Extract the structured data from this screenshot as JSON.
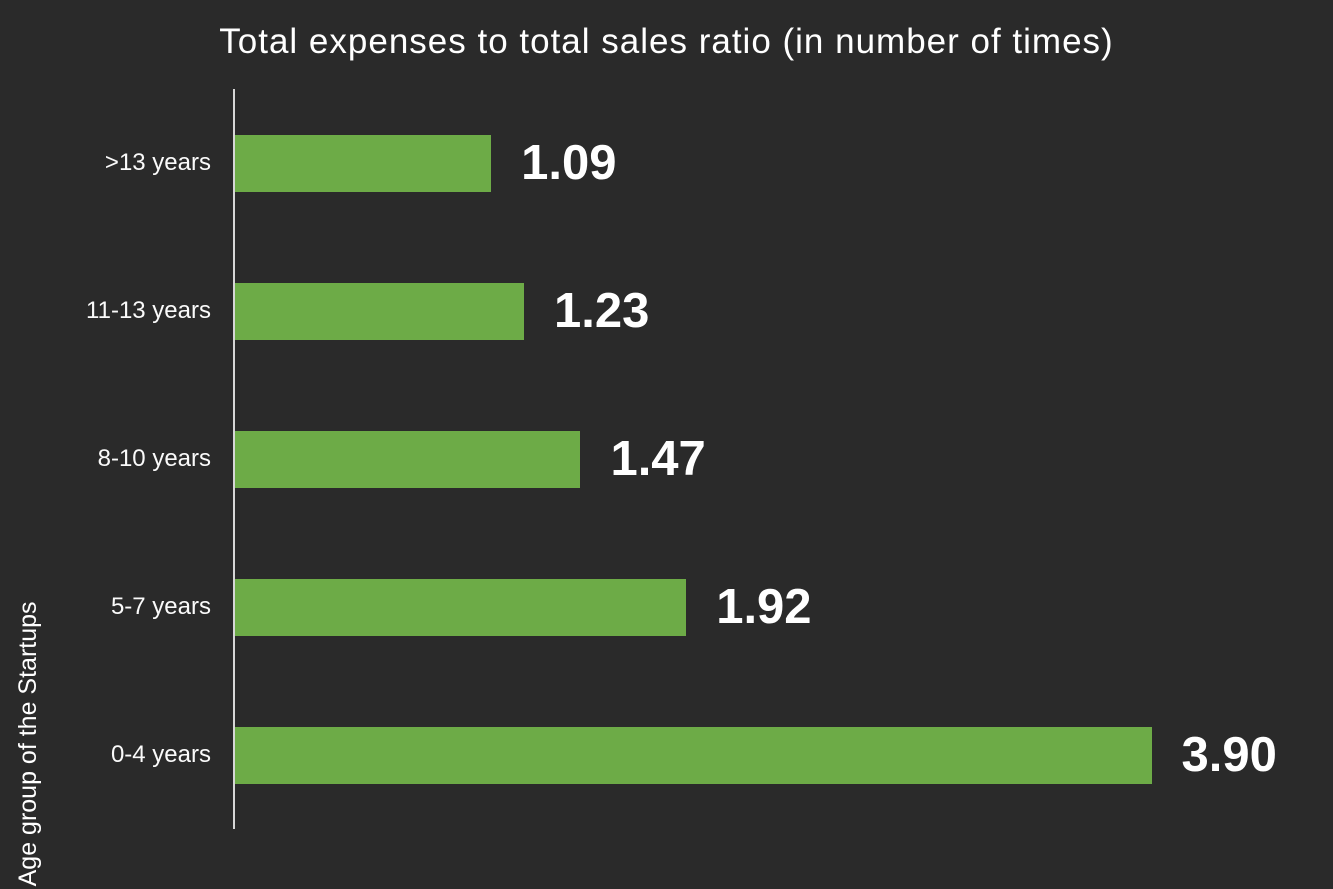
{
  "chart_data": {
    "type": "bar",
    "orientation": "horizontal",
    "title": "Total expenses to total sales ratio (in number of times)",
    "xlabel": "",
    "ylabel": "Age group of the Startups",
    "categories": [
      ">13 years",
      "11-13 years",
      "8-10 years",
      "5-7 years",
      "0-4 years"
    ],
    "values": [
      1.09,
      1.23,
      1.47,
      1.92,
      3.9
    ],
    "value_labels": [
      "1.09",
      "1.23",
      "1.47",
      "1.92",
      "3.90"
    ],
    "xlim": [
      0,
      4.68
    ],
    "grid": "off",
    "legend": "none",
    "colors": {
      "background": "#2A2A2A",
      "bar": "#6DAB47",
      "text": "#FFFFFF",
      "axis_line": "#D6D6D6"
    }
  }
}
